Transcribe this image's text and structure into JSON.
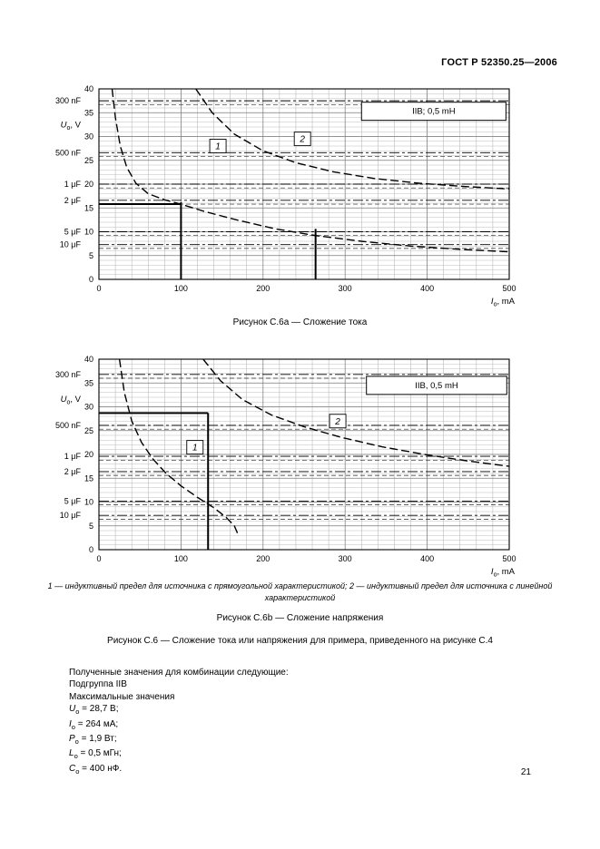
{
  "page": {
    "header": "ГОСТ Р 52350.25—2006",
    "page_number": "21",
    "caption_a": "Рисунок С.6а — Сложение тока",
    "caption_b": "Рисунок С.6b — Сложение напряжения",
    "caption_main": "Рисунок С.6 — Сложение тока или напряжения для примера, приведенного на рисунке С.4",
    "footnote": {
      "n1": "1",
      "t1": " — индуктивный предел для источника с прямоугольной характеристикой; ",
      "n2": "2",
      "t2": " — индуктивный предел для источника с линейной характеристикой"
    },
    "results": {
      "intro": "Полученные значения для комбинации следующие:",
      "subgroup": "Подгруппа IIB",
      "max_label": "Максимальные значения",
      "values": [
        {
          "var": "U",
          "sub": "о",
          "rest": " = 28,7 В;"
        },
        {
          "var": "I",
          "sub": "о",
          "rest": " = 264 мА;"
        },
        {
          "var": "P",
          "sub": "о",
          "rest": " = 1,9 Вт;"
        },
        {
          "var": "L",
          "sub": "о",
          "rest": " = 0,5 мГн;"
        },
        {
          "var": "C",
          "sub": "о",
          "rest": " = 400 нФ."
        }
      ]
    }
  },
  "chart_data": [
    {
      "type": "line",
      "title": "Рисунок С.6а — Сложение тока",
      "legend": "IIB; 0,5 mH",
      "legend_box": {
        "x1": 320,
        "x2": 496,
        "v1": 33.4,
        "v2": 37.2
      },
      "xlabel": {
        "var": "I",
        "sub": "о",
        "unit": ", mA"
      },
      "ylabel": {
        "var": "U",
        "sub": "о",
        "unit": ", V"
      },
      "ylabel_v": 32.5,
      "xlim": [
        0,
        500
      ],
      "ylim": [
        0,
        40
      ],
      "xticks": [
        0,
        100,
        200,
        300,
        400,
        500
      ],
      "yticks": [
        0,
        5,
        10,
        15,
        20,
        25,
        30,
        35,
        40
      ],
      "x_minor_step": 20,
      "y_minor_step": 1,
      "cap_lines": [
        {
          "label": "300 nF",
          "v": 37.5
        },
        {
          "label": "500 nF",
          "v": 26.6
        },
        {
          "label": "1 μF",
          "v": 20.0
        },
        {
          "label": "2 μF",
          "v": 16.6
        },
        {
          "label": "5 μF",
          "v": 10.0
        },
        {
          "label": "10 μF",
          "v": 7.3
        }
      ],
      "series": [
        {
          "name": "1",
          "desc": "индуктивный предел для источника с прямоугольной характеристикой",
          "label_at": [
            145,
            28
          ],
          "points": [
            [
              16,
              40
            ],
            [
              20,
              34
            ],
            [
              26,
              28
            ],
            [
              34,
              23.5
            ],
            [
              45,
              20.2
            ],
            [
              60,
              18
            ],
            [
              80,
              16.7
            ],
            [
              100,
              15.8
            ],
            [
              130,
              14.2
            ],
            [
              170,
              12.4
            ],
            [
              215,
              10.6
            ],
            [
              264,
              9.2
            ],
            [
              320,
              8.0
            ],
            [
              380,
              7.0
            ],
            [
              440,
              6.3
            ],
            [
              500,
              5.8
            ]
          ]
        },
        {
          "name": "2",
          "desc": "индуктивный предел для источника с линейной характеристикой",
          "label_at": [
            248,
            29.5
          ],
          "points": [
            [
              118,
              40
            ],
            [
              138,
              35
            ],
            [
              165,
              30.5
            ],
            [
              200,
              27
            ],
            [
              240,
              24.5
            ],
            [
              285,
              22.6
            ],
            [
              335,
              21.2
            ],
            [
              390,
              20.2
            ],
            [
              445,
              19.5
            ],
            [
              500,
              19
            ]
          ]
        }
      ],
      "construction": [
        {
          "t": "h",
          "v": 15.8,
          "a": 0,
          "b": 100
        },
        {
          "t": "v",
          "x": 100,
          "a": 0,
          "b": 16.2
        },
        {
          "t": "v",
          "x": 264,
          "a": 0,
          "b": 10.6
        }
      ]
    },
    {
      "type": "line",
      "title": "Рисунок С.6b — Сложение напряжения",
      "legend": "IIB, 0,5 mH",
      "legend_box": {
        "x1": 326,
        "x2": 497,
        "v1": 32.6,
        "v2": 36.4
      },
      "xlabel": {
        "var": "I",
        "sub": "о",
        "unit": ", mA"
      },
      "ylabel": {
        "var": "U",
        "sub": "о",
        "unit": ", V"
      },
      "ylabel_v": 31.6,
      "xlim": [
        0,
        500
      ],
      "ylim": [
        0,
        40
      ],
      "xticks": [
        0,
        100,
        200,
        300,
        400,
        500
      ],
      "yticks": [
        0,
        5,
        10,
        15,
        20,
        25,
        30,
        35,
        40
      ],
      "x_minor_step": 20,
      "y_minor_step": 1,
      "cap_lines": [
        {
          "label": "300 nF",
          "v": 36.8
        },
        {
          "label": "500 nF",
          "v": 26.1
        },
        {
          "label": "1 μF",
          "v": 19.6
        },
        {
          "label": "2 μF",
          "v": 16.4
        },
        {
          "label": "5 μF",
          "v": 10.2
        },
        {
          "label": "10 μF",
          "v": 7.2
        }
      ],
      "series": [
        {
          "name": "1",
          "desc": "индуктивный предел для источника с прямоугольной характеристикой",
          "label_at": [
            117,
            21.5
          ],
          "points": [
            [
              25,
              40
            ],
            [
              31,
              33
            ],
            [
              40,
              27
            ],
            [
              52,
              22.5
            ],
            [
              66,
              19
            ],
            [
              82,
              16
            ],
            [
              100,
              13.4
            ],
            [
              120,
              11
            ],
            [
              140,
              8.8
            ],
            [
              155,
              6.8
            ],
            [
              165,
              5
            ],
            [
              169,
              3.4
            ]
          ]
        },
        {
          "name": "2",
          "desc": "индуктивный предел для источника с линейной характеристикой",
          "label_at": [
            291,
            27
          ],
          "points": [
            [
              127,
              40
            ],
            [
              148,
              35.5
            ],
            [
              175,
              31.5
            ],
            [
              210,
              28.3
            ],
            [
              250,
              25.8
            ],
            [
              295,
              23.6
            ],
            [
              345,
              21.6
            ],
            [
              400,
              19.9
            ],
            [
              450,
              18.6
            ],
            [
              500,
              17.5
            ]
          ]
        }
      ],
      "construction": [
        {
          "t": "h",
          "v": 28.7,
          "a": 0,
          "b": 133
        },
        {
          "t": "v",
          "x": 133,
          "a": 0,
          "b": 28.7
        }
      ]
    }
  ]
}
